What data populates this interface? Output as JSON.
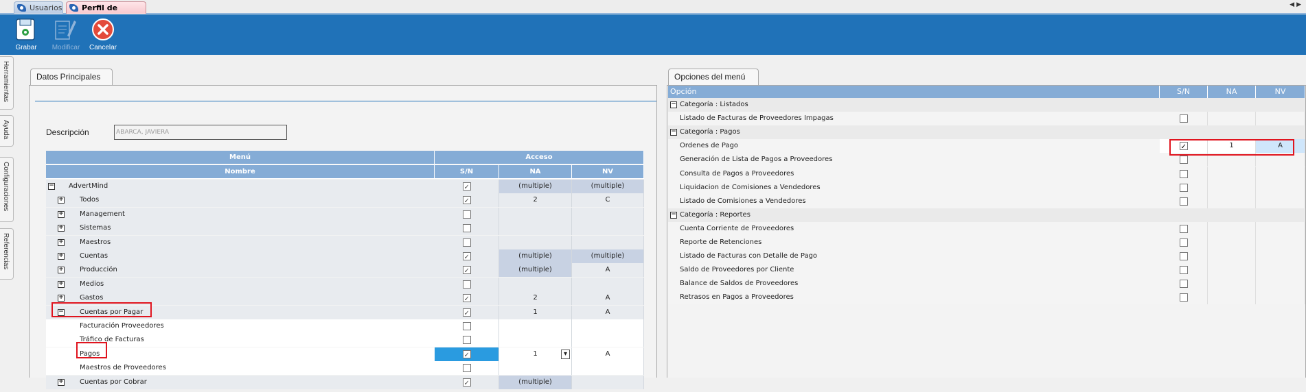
{
  "tabs": [
    {
      "label": "Usuarios"
    },
    {
      "label": "Perfil de Usuario"
    }
  ],
  "toolbar": {
    "grabar": "Grabar",
    "modificar": "Modificar",
    "cancelar": "Cancelar"
  },
  "side_tabs": [
    "Herramientas",
    "Ayuda",
    "Configuraciones",
    "Referencias"
  ],
  "left": {
    "tab_label": "Datos Principales",
    "descripcion_label": "Descripción",
    "descripcion_value": "ABARCA, JAVIERA",
    "grid_headers": {
      "menu": "Menú",
      "acceso": "Acceso",
      "nombre": "Nombre",
      "sn": "S/N",
      "na": "NA",
      "nv": "NV"
    },
    "rows": [
      {
        "expander": "−",
        "name": "AdvertMind",
        "checked": true,
        "na": "(multiple)",
        "nv": "(multiple)"
      },
      {
        "expander": "+",
        "name": "Todos",
        "checked": true,
        "na": "2",
        "nv": "C"
      },
      {
        "expander": "+",
        "name": "Management",
        "checked": false,
        "na": "",
        "nv": ""
      },
      {
        "expander": "+",
        "name": "Sistemas",
        "checked": false,
        "na": "",
        "nv": ""
      },
      {
        "expander": "+",
        "name": "Maestros",
        "checked": false,
        "na": "",
        "nv": ""
      },
      {
        "expander": "+",
        "name": "Cuentas",
        "checked": true,
        "na": "(multiple)",
        "nv": "(multiple)"
      },
      {
        "expander": "+",
        "name": "Producción",
        "checked": true,
        "na": "(multiple)",
        "nv": "A"
      },
      {
        "expander": "+",
        "name": "Medios",
        "checked": false,
        "na": "",
        "nv": ""
      },
      {
        "expander": "+",
        "name": "Gastos",
        "checked": true,
        "na": "2",
        "nv": "A"
      },
      {
        "expander": "−",
        "name": "Cuentas por Pagar",
        "checked": true,
        "na": "1",
        "nv": "A"
      },
      {
        "expander": "",
        "name": "Facturación Proveedores",
        "checked": false,
        "na": "",
        "nv": ""
      },
      {
        "expander": "",
        "name": "Tráfico de Facturas",
        "checked": false,
        "na": "",
        "nv": ""
      },
      {
        "expander": "",
        "name": "Pagos",
        "checked": true,
        "na": "1",
        "nv": "A"
      },
      {
        "expander": "",
        "name": "Maestros de Proveedores",
        "checked": false,
        "na": "",
        "nv": ""
      },
      {
        "expander": "+",
        "name": "Cuentas por Cobrar",
        "checked": true,
        "na": "(multiple)",
        "nv": ""
      }
    ]
  },
  "right": {
    "tab_label": "Opciones del menú",
    "headers": {
      "opcion": "Opción",
      "sn": "S/N",
      "na": "NA",
      "nv": "NV"
    },
    "rows": [
      {
        "type": "cat",
        "label": "Categoría : Listados"
      },
      {
        "type": "item",
        "label": "Listado de Facturas de Proveedores Impagas",
        "checked": false,
        "na": "",
        "nv": ""
      },
      {
        "type": "cat",
        "label": "Categoría : Pagos"
      },
      {
        "type": "item",
        "label": "Ordenes de Pago",
        "checked": true,
        "na": "1",
        "nv": "A"
      },
      {
        "type": "item",
        "label": "Generación de Lista de Pagos a Proveedores",
        "checked": false,
        "na": "",
        "nv": ""
      },
      {
        "type": "item",
        "label": "Consulta de Pagos a Proveedores",
        "checked": false,
        "na": "",
        "nv": ""
      },
      {
        "type": "item",
        "label": "Liquidacion de Comisiones a Vendedores",
        "checked": false,
        "na": "",
        "nv": ""
      },
      {
        "type": "item",
        "label": "Listado de Comisiones a Vendedores",
        "checked": false,
        "na": "",
        "nv": ""
      },
      {
        "type": "cat",
        "label": "Categoría : Reportes"
      },
      {
        "type": "item",
        "label": "Cuenta Corriente de Proveedores",
        "checked": false,
        "na": "",
        "nv": ""
      },
      {
        "type": "item",
        "label": "Reporte de Retenciones",
        "checked": false,
        "na": "",
        "nv": ""
      },
      {
        "type": "item",
        "label": "Listado de Facturas con Detalle de Pago",
        "checked": false,
        "na": "",
        "nv": ""
      },
      {
        "type": "item",
        "label": "Saldo de Proveedores por Cliente",
        "checked": false,
        "na": "",
        "nv": ""
      },
      {
        "type": "item",
        "label": "Balance de Saldos de Proveedores",
        "checked": false,
        "na": "",
        "nv": ""
      },
      {
        "type": "item",
        "label": "Retrasos en Pagos  a Proveedores",
        "checked": false,
        "na": "",
        "nv": ""
      }
    ]
  },
  "colors": {
    "toolbar": "#2072b8",
    "grid_header": "#85acd6",
    "highlight": "#e0141e",
    "selected_cell": "#2a9be0"
  }
}
